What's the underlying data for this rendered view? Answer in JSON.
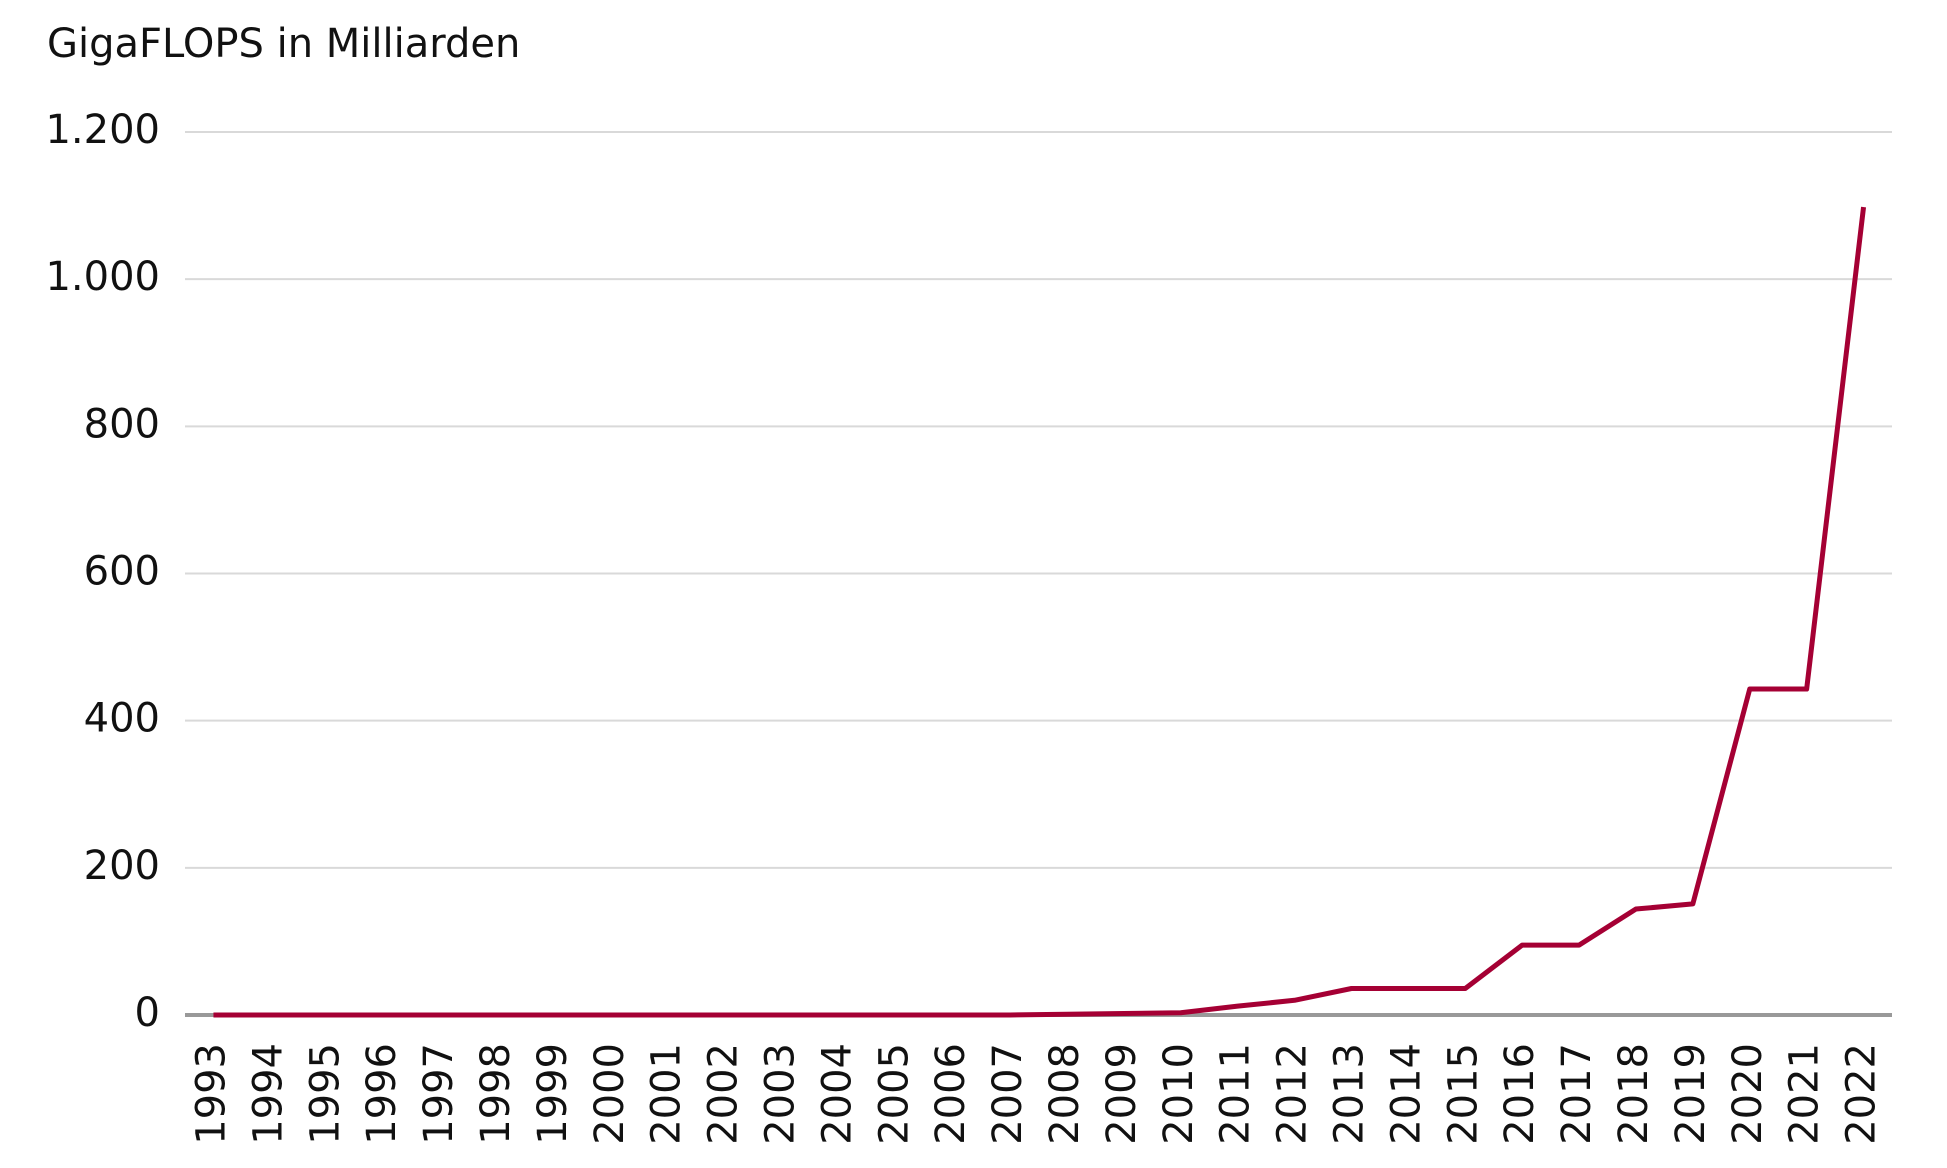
{
  "chart_data": {
    "type": "line",
    "y_axis_label": "GigaFLOPS in Milliarden",
    "categories": [
      "1993",
      "1994",
      "1995",
      "1996",
      "1997",
      "1998",
      "1999",
      "2000",
      "2001",
      "2002",
      "2003",
      "2004",
      "2005",
      "2006",
      "2007",
      "2008",
      "2009",
      "2010",
      "2011",
      "2012",
      "2013",
      "2014",
      "2015",
      "2016",
      "2017",
      "2018",
      "2019",
      "2020",
      "2021",
      "2022"
    ],
    "series": [
      {
        "color": "#a50034",
        "values": [
          0,
          0,
          0,
          0,
          0,
          0,
          0,
          0,
          0,
          0,
          0,
          0,
          0,
          0,
          0,
          1,
          2,
          3,
          12,
          20,
          36,
          36,
          36,
          95,
          95,
          144,
          151,
          443,
          443,
          1098
        ]
      }
    ],
    "ylim": [
      0,
      1200
    ],
    "yticks": [
      0,
      200,
      400,
      600,
      800,
      {
        "value": 1000,
        "label": "1.000"
      },
      {
        "value": 1200,
        "label": "1.200"
      }
    ],
    "grid": true
  }
}
